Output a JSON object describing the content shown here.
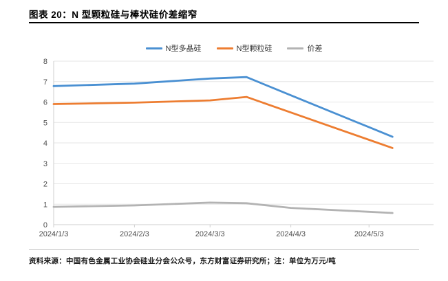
{
  "header": {
    "title": "图表 20：N 型颗粒硅与棒状硅价差缩窄"
  },
  "footer": {
    "source": "资料来源：中国有色金属工业协会硅业分会公众号，东方财富证券研究所；注：单位为万元/吨"
  },
  "chart_data": {
    "type": "line",
    "title": "N 型颗粒硅与棒状硅价差缩窄",
    "unit_note": "万元/吨",
    "grid": "horizontal",
    "legend_position": "top-center",
    "ylim": [
      0,
      8
    ],
    "y_ticks": [
      0,
      1,
      2,
      3,
      4,
      5,
      6,
      7,
      8
    ],
    "x_days": [
      0,
      31,
      60,
      74,
      91,
      121,
      130
    ],
    "x_tick_days": [
      0,
      31,
      60,
      91,
      121
    ],
    "x_tick_labels": [
      "2024/1/3",
      "2024/2/3",
      "2024/3/3",
      "2024/4/3",
      "2024/5/3"
    ],
    "series": [
      {
        "name": "N型多晶硅",
        "color": "#4a90d2",
        "values": [
          6.78,
          6.9,
          7.15,
          7.22,
          6.33,
          4.77,
          4.3
        ]
      },
      {
        "name": "N型颗粒硅",
        "color": "#ed7d31",
        "values": [
          5.9,
          5.97,
          6.08,
          6.25,
          5.49,
          4.15,
          3.75
        ]
      },
      {
        "name": "价差",
        "color": "#b3b3b3",
        "values": [
          0.87,
          0.94,
          1.08,
          1.05,
          0.82,
          0.63,
          0.57
        ]
      }
    ]
  },
  "colors": {
    "grid": "#e6e6e6",
    "axis": "#cfcfcf",
    "tick_text": "#4d4d4d",
    "title_rule": "#000000",
    "footer_rule": "#c9c9c9"
  }
}
